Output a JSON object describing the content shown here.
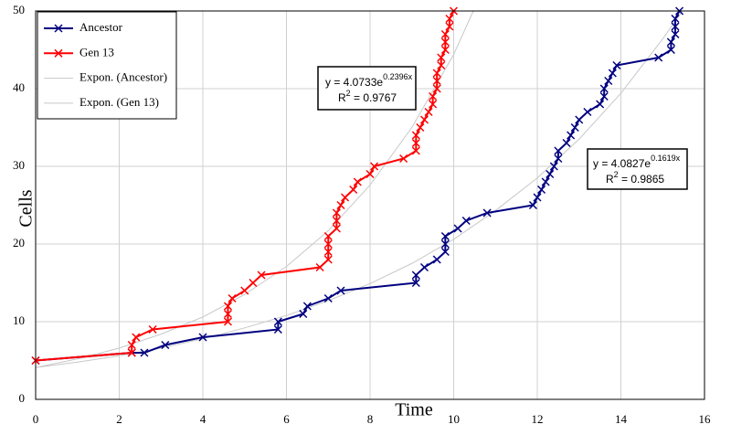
{
  "chart_data": {
    "type": "line",
    "xlabel": "Time",
    "ylabel": "Cells",
    "xlim": [
      0,
      16
    ],
    "xticks": [
      0,
      2,
      4,
      6,
      8,
      10,
      12,
      14,
      16
    ],
    "ylim": [
      0,
      50
    ],
    "yticks": [
      0,
      10,
      20,
      30,
      40,
      50
    ],
    "grid": true,
    "legend": "upper left",
    "series": [
      {
        "name": "Ancestor",
        "color": "#000080",
        "marker": "x",
        "x": [
          0,
          2.3,
          2.6,
          3.1,
          4.0,
          5.8,
          5.8,
          6.4,
          6.5,
          7.0,
          7.3,
          9.1,
          9.1,
          9.3,
          9.6,
          9.8,
          9.8,
          9.8,
          10.1,
          10.3,
          10.8,
          11.9,
          12.0,
          12.1,
          12.2,
          12.3,
          12.4,
          12.5,
          12.5,
          12.7,
          12.8,
          12.9,
          13.0,
          13.2,
          13.5,
          13.6,
          13.6,
          13.7,
          13.8,
          13.9,
          14.9,
          15.2,
          15.2,
          15.3,
          15.3,
          15.3,
          15.4
        ],
        "values": [
          5,
          6,
          6,
          7,
          8,
          9,
          10,
          11,
          12,
          13,
          14,
          15,
          16,
          17,
          18,
          19,
          20,
          21,
          22,
          23,
          24,
          25,
          26,
          27,
          28,
          29,
          30,
          31,
          32,
          33,
          34,
          35,
          36,
          37,
          38,
          39,
          40,
          41,
          42,
          43,
          44,
          45,
          46,
          47,
          48,
          49,
          50
        ]
      },
      {
        "name": "Gen 13",
        "color": "#ff0000",
        "marker": "x",
        "x": [
          0,
          2.3,
          2.3,
          2.4,
          2.8,
          4.6,
          4.6,
          4.6,
          4.7,
          5.0,
          5.2,
          5.4,
          6.8,
          7.0,
          7.0,
          7.0,
          7.0,
          7.2,
          7.2,
          7.2,
          7.3,
          7.4,
          7.6,
          7.7,
          8.0,
          8.1,
          8.8,
          9.1,
          9.1,
          9.1,
          9.2,
          9.3,
          9.4,
          9.5,
          9.5,
          9.6,
          9.6,
          9.6,
          9.7,
          9.7,
          9.8,
          9.8,
          9.8,
          9.9,
          9.9,
          10.0
        ],
        "values": [
          5,
          6,
          7,
          8,
          9,
          10,
          11,
          12,
          13,
          14,
          15,
          16,
          17,
          18,
          19,
          20,
          21,
          22,
          23,
          24,
          25,
          26,
          27,
          28,
          29,
          30,
          31,
          32,
          33,
          34,
          35,
          36,
          37,
          38,
          39,
          40,
          41,
          42,
          43,
          44,
          45,
          46,
          47,
          48,
          49,
          50
        ]
      },
      {
        "name": "Expon. (Ancestor)",
        "color": "#c8c8c8",
        "marker": "none",
        "x": [
          0,
          1,
          2,
          3,
          4,
          5,
          6,
          7,
          8,
          9,
          10,
          11,
          12,
          13,
          14,
          15,
          15.47
        ],
        "values": [
          4.1,
          4.8,
          5.6,
          6.6,
          7.8,
          9.2,
          10.8,
          12.7,
          14.9,
          17.5,
          20.6,
          24.3,
          28.5,
          33.5,
          39.4,
          46.4,
          50
        ]
      },
      {
        "name": "Expon. (Gen 13)",
        "color": "#c8c8c8",
        "marker": "none",
        "x": [
          0,
          1,
          2,
          3,
          4,
          5,
          6,
          7,
          8,
          9,
          10,
          10.47
        ],
        "values": [
          4.1,
          5.2,
          6.6,
          8.4,
          10.6,
          13.5,
          17.1,
          21.7,
          27.6,
          35.0,
          44.4,
          50
        ]
      }
    ],
    "annotations": [
      {
        "equation": "y = 4.0733e",
        "exponent": "0.2396x",
        "r2_label": "R",
        "r2_power": "2",
        "r2_value": " = 0.9767"
      },
      {
        "equation": "y = 4.0827e",
        "exponent": "0.1619x",
        "r2_label": "R",
        "r2_power": "2",
        "r2_value": " = 0.9865"
      }
    ]
  }
}
